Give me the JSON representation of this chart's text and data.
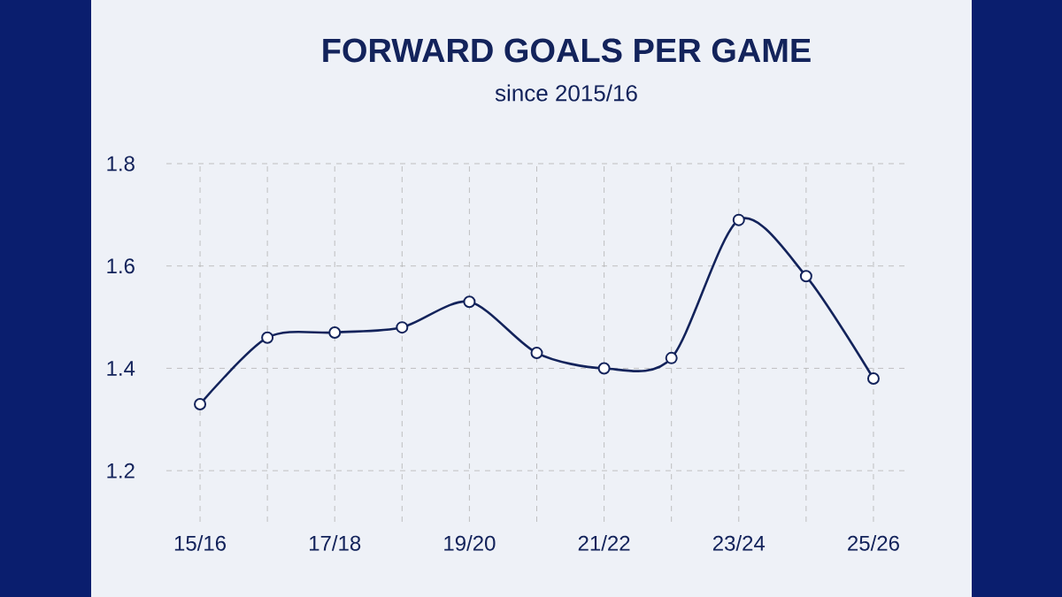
{
  "chart_data": {
    "type": "line",
    "title": "FORWARD GOALS PER GAME",
    "subtitle": "since 2015/16",
    "categories": [
      "15/16",
      null,
      "17/18",
      null,
      "19/20",
      null,
      "21/22",
      null,
      "23/24",
      null,
      "25/26"
    ],
    "series": [
      {
        "color": "#13235b",
        "values": [
          1.33,
          1.46,
          1.47,
          1.48,
          1.53,
          1.43,
          1.4,
          1.42,
          1.69,
          1.58,
          1.38
        ]
      }
    ],
    "ylim": [
      1.1,
      1.8
    ],
    "yticks": [
      1.2,
      1.4,
      1.6,
      1.8
    ],
    "grid": true,
    "marker": "circle",
    "line_style": "solid"
  }
}
